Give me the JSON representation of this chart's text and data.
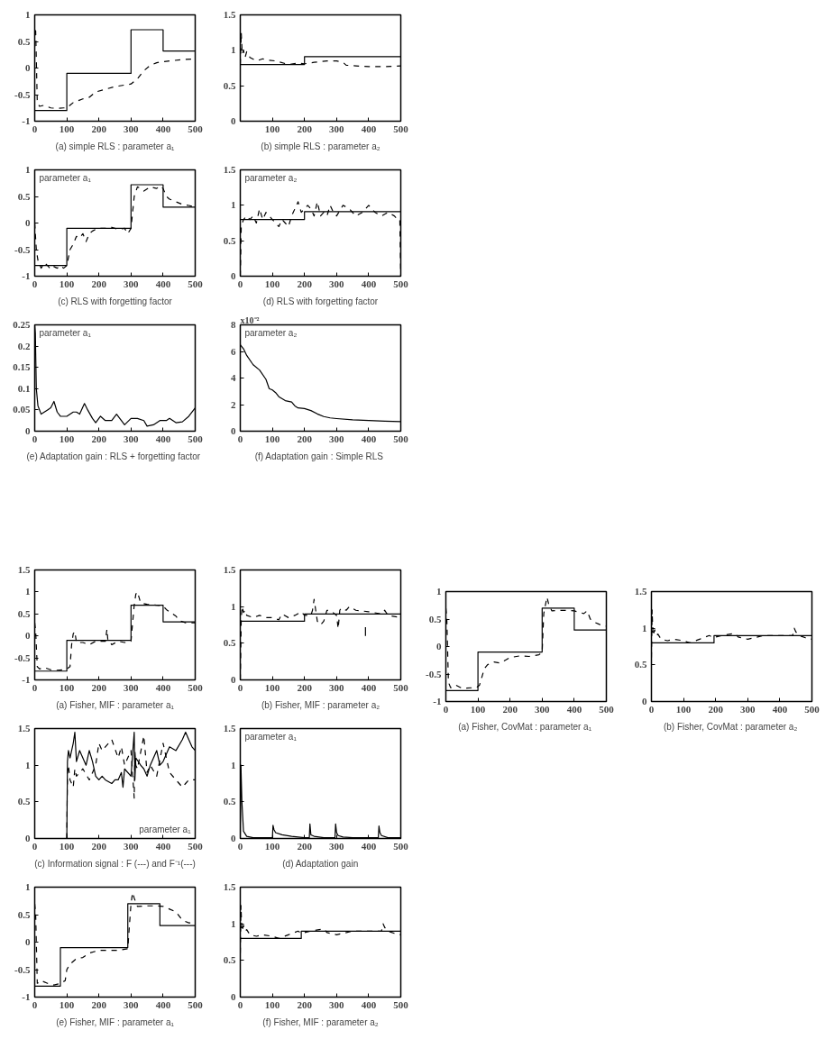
{
  "chart_data": [
    {
      "type": "line",
      "title": "(a) simple RLS : parameter a₁",
      "xlim": [
        0,
        500
      ],
      "ylim": [
        -1,
        1
      ],
      "xticks": [
        0,
        100,
        200,
        300,
        400,
        500
      ],
      "yticks": [
        -1,
        -0.5,
        0,
        0.5,
        1
      ],
      "grid": false,
      "series": [
        {
          "color": "#000000",
          "line_style": "solid",
          "x": [
            0,
            100,
            100,
            300,
            300,
            400,
            400,
            500
          ],
          "values": [
            -0.8,
            -0.8,
            -0.1,
            -0.1,
            0.72,
            0.72,
            0.32,
            0.32
          ]
        },
        {
          "color": "#000000",
          "line_style": "dashed",
          "x": [
            0,
            3,
            8,
            15,
            30,
            50,
            70,
            90,
            100,
            120,
            150,
            170,
            190,
            220,
            250,
            280,
            300,
            320,
            340,
            360,
            380,
            400,
            430,
            460,
            500
          ],
          "values": [
            0.7,
            0.7,
            -0.65,
            -0.72,
            -0.7,
            -0.75,
            -0.76,
            -0.75,
            -0.75,
            -0.65,
            -0.58,
            -0.55,
            -0.45,
            -0.4,
            -0.35,
            -0.32,
            -0.3,
            -0.2,
            -0.05,
            0.05,
            0.1,
            0.12,
            0.14,
            0.16,
            0.17
          ]
        }
      ]
    },
    {
      "type": "line",
      "title": "(b) simple RLS : parameter a₂",
      "xlim": [
        0,
        500
      ],
      "ylim": [
        0,
        1.5
      ],
      "xticks": [
        100,
        200,
        300,
        400,
        500
      ],
      "yticks": [
        0,
        0.5,
        1,
        1.5
      ],
      "grid": false,
      "series": [
        {
          "color": "#000000",
          "line_style": "solid",
          "x": [
            0,
            200,
            200,
            500
          ],
          "values": [
            0.8,
            0.8,
            0.91,
            0.91
          ]
        },
        {
          "color": "#000000",
          "line_style": "dashed",
          "x": [
            0,
            3,
            6,
            10,
            15,
            20,
            30,
            50,
            70,
            90,
            110,
            150,
            180,
            200,
            230,
            270,
            300,
            320,
            330,
            360,
            400,
            450,
            500
          ],
          "values": [
            0.8,
            1.25,
            0.95,
            1.0,
            0.9,
            0.98,
            0.9,
            0.85,
            0.88,
            0.86,
            0.85,
            0.8,
            0.82,
            0.81,
            0.83,
            0.85,
            0.85,
            0.83,
            0.79,
            0.78,
            0.77,
            0.77,
            0.78
          ]
        }
      ]
    },
    {
      "type": "line",
      "title": "(c) RLS with forgetting factor",
      "annotations": [
        "parameter a₁"
      ],
      "xlim": [
        0,
        500
      ],
      "ylim": [
        -1,
        1
      ],
      "xticks": [
        0,
        100,
        200,
        300,
        400,
        500
      ],
      "yticks": [
        -1,
        -0.5,
        0,
        0.5,
        1
      ],
      "grid": false,
      "series": [
        {
          "color": "#000000",
          "line_style": "solid",
          "x": [
            0,
            100,
            100,
            300,
            300,
            400,
            400,
            500
          ],
          "values": [
            -0.8,
            -0.8,
            -0.1,
            -0.1,
            0.72,
            0.72,
            0.3,
            0.3
          ]
        },
        {
          "color": "#000000",
          "line_style": "dashed",
          "x": [
            0,
            5,
            10,
            20,
            30,
            40,
            50,
            60,
            70,
            80,
            90,
            100,
            110,
            120,
            130,
            140,
            150,
            160,
            170,
            180,
            190,
            200,
            220,
            240,
            260,
            280,
            290,
            300,
            310,
            320,
            330,
            340,
            360,
            380,
            390,
            400,
            410,
            420,
            440,
            460,
            480,
            500
          ],
          "values": [
            0,
            -0.5,
            -0.7,
            -0.85,
            -0.75,
            -0.8,
            -0.87,
            -0.82,
            -0.85,
            -0.8,
            -0.85,
            -0.8,
            -0.5,
            -0.4,
            -0.25,
            -0.28,
            -0.2,
            -0.35,
            -0.2,
            -0.15,
            -0.12,
            -0.1,
            -0.1,
            -0.08,
            -0.12,
            -0.1,
            -0.2,
            -0.1,
            0.5,
            0.68,
            0.65,
            0.6,
            0.68,
            0.65,
            0.7,
            0.65,
            0.5,
            0.45,
            0.4,
            0.35,
            0.33,
            0.3
          ]
        }
      ]
    },
    {
      "type": "line",
      "title": "(d) RLS with forgetting factor",
      "annotations": [
        "parameter a₂"
      ],
      "xlim": [
        0,
        500
      ],
      "ylim": [
        0,
        1.5
      ],
      "xticks": [
        0,
        100,
        200,
        300,
        400,
        500
      ],
      "yticks": [
        0,
        0.5,
        1,
        1.5
      ],
      "grid": false,
      "series": [
        {
          "color": "#000000",
          "line_style": "solid",
          "x": [
            0,
            200,
            200,
            500
          ],
          "values": [
            0.8,
            0.8,
            0.91,
            0.91
          ]
        },
        {
          "color": "#000000",
          "line_style": "dashed",
          "x": [
            0,
            3,
            10,
            20,
            30,
            40,
            50,
            60,
            70,
            80,
            90,
            100,
            110,
            120,
            130,
            140,
            150,
            160,
            170,
            180,
            190,
            200,
            210,
            220,
            230,
            240,
            250,
            260,
            270,
            280,
            290,
            300,
            320,
            340,
            360,
            380,
            400,
            420,
            440,
            460,
            480,
            490,
            497,
            500
          ],
          "values": [
            0,
            0.7,
            0.8,
            0.85,
            0.8,
            0.85,
            0.75,
            0.95,
            0.8,
            0.9,
            0.85,
            0.8,
            0.75,
            0.7,
            0.8,
            0.75,
            0.7,
            0.85,
            0.95,
            1.05,
            0.9,
            0.95,
            1.0,
            0.95,
            0.85,
            1.05,
            0.85,
            0.9,
            0.85,
            1.0,
            0.9,
            0.85,
            1.0,
            0.95,
            0.85,
            0.9,
            1.0,
            0.9,
            0.85,
            0.9,
            0.85,
            0.8,
            0.8,
            0
          ]
        }
      ]
    },
    {
      "type": "line",
      "title": "(e)  Adaptation gain : RLS + forgetting factor",
      "annotations": [
        "parameter a₁"
      ],
      "xlim": [
        0,
        500
      ],
      "ylim": [
        0,
        0.25
      ],
      "xticks": [
        0,
        100,
        200,
        300,
        400,
        500
      ],
      "yticks": [
        0,
        0.05,
        0.1,
        0.15,
        0.2,
        0.25
      ],
      "grid": false,
      "series": [
        {
          "color": "#000000",
          "line_style": "solid",
          "x": [
            0,
            2,
            5,
            10,
            20,
            40,
            50,
            60,
            70,
            80,
            100,
            120,
            130,
            140,
            155,
            165,
            180,
            190,
            205,
            220,
            240,
            255,
            265,
            280,
            300,
            320,
            340,
            350,
            370,
            390,
            410,
            420,
            440,
            460,
            480,
            500
          ],
          "values": [
            0.25,
            0.23,
            0.1,
            0.06,
            0.04,
            0.05,
            0.055,
            0.07,
            0.045,
            0.035,
            0.035,
            0.045,
            0.045,
            0.04,
            0.065,
            0.05,
            0.03,
            0.02,
            0.035,
            0.025,
            0.025,
            0.04,
            0.03,
            0.015,
            0.03,
            0.03,
            0.025,
            0.012,
            0.015,
            0.025,
            0.025,
            0.03,
            0.02,
            0.022,
            0.035,
            0.055
          ]
        }
      ]
    },
    {
      "type": "line",
      "title": "(f)  Adaptation gain : Simple RLS",
      "annotations": [
        "x10⁻²",
        "parameter a₂"
      ],
      "xlim": [
        0,
        500
      ],
      "ylim": [
        0,
        8
      ],
      "xticks": [
        0,
        100,
        200,
        300,
        400,
        500
      ],
      "yticks": [
        0,
        2,
        4,
        6,
        8
      ],
      "grid": false,
      "series": [
        {
          "color": "#000000",
          "line_style": "solid",
          "x": [
            0,
            10,
            20,
            40,
            60,
            80,
            90,
            100,
            110,
            120,
            140,
            160,
            170,
            180,
            200,
            220,
            240,
            260,
            280,
            300,
            350,
            400,
            450,
            500
          ],
          "values": [
            6.5,
            6.2,
            5.7,
            5.0,
            4.6,
            3.9,
            3.2,
            3.1,
            2.9,
            2.6,
            2.3,
            2.2,
            1.9,
            1.75,
            1.7,
            1.55,
            1.3,
            1.1,
            1.0,
            0.95,
            0.85,
            0.8,
            0.75,
            0.72
          ]
        }
      ]
    },
    {
      "type": "line",
      "title": "(a) Fisher, MIF : parameter a₁",
      "xlim": [
        0,
        500
      ],
      "ylim": [
        -1,
        1.5
      ],
      "xticks": [
        0,
        100,
        200,
        300,
        400,
        500
      ],
      "yticks": [
        -1,
        -0.5,
        0,
        0.5,
        1,
        1.5
      ],
      "grid": false,
      "series": [
        {
          "color": "#000000",
          "line_style": "solid",
          "x": [
            0,
            100,
            100,
            300,
            300,
            400,
            400,
            500
          ],
          "values": [
            -0.8,
            -0.8,
            -0.1,
            -0.1,
            0.7,
            0.7,
            0.32,
            0.32
          ]
        },
        {
          "color": "#000000",
          "line_style": "dashed",
          "x": [
            0,
            3,
            8,
            15,
            30,
            50,
            70,
            90,
            100,
            110,
            115,
            120,
            125,
            130,
            150,
            170,
            190,
            220,
            225,
            228,
            230,
            240,
            260,
            280,
            300,
            305,
            310,
            315,
            320,
            330,
            350,
            380,
            400,
            410,
            420,
            430,
            440,
            450,
            470,
            500
          ],
          "values": [
            0.3,
            0.1,
            -0.7,
            -0.75,
            -0.72,
            -0.77,
            -0.78,
            -0.77,
            -0.75,
            -0.7,
            -0.2,
            0.05,
            0.1,
            -0.15,
            -0.15,
            -0.2,
            -0.12,
            -0.12,
            0.15,
            -0.1,
            -0.1,
            -0.2,
            -0.12,
            -0.15,
            -0.12,
            0.3,
            0.7,
            0.95,
            1.0,
            0.75,
            0.72,
            0.7,
            0.68,
            0.6,
            0.55,
            0.5,
            0.45,
            0.35,
            0.3,
            0.3
          ]
        }
      ]
    },
    {
      "type": "line",
      "title": "(b) Fisher, MIF : parameter a₂",
      "xlim": [
        0,
        500
      ],
      "ylim": [
        0,
        1.5
      ],
      "xticks": [
        0,
        100,
        200,
        300,
        400,
        500
      ],
      "yticks": [
        0,
        0.5,
        1,
        1.5
      ],
      "grid": false,
      "series": [
        {
          "color": "#000000",
          "line_style": "solid",
          "x": [
            0,
            200,
            200,
            500
          ],
          "values": [
            0.8,
            0.8,
            0.9,
            0.9
          ]
        },
        {
          "color": "#000000",
          "line_style": "dashed",
          "x": [
            0,
            3,
            6,
            10,
            15,
            20,
            40,
            60,
            80,
            100,
            120,
            130,
            150,
            170,
            190,
            200,
            220,
            225,
            230,
            240,
            250,
            260,
            270,
            280,
            300,
            305,
            310,
            315,
            330,
            340,
            360,
            400,
            440,
            450,
            460,
            500
          ],
          "values": [
            0,
            0.85,
            1.0,
            0.92,
            0.95,
            0.88,
            0.85,
            0.88,
            0.85,
            0.85,
            0.82,
            0.9,
            0.85,
            0.88,
            0.93,
            0.88,
            0.88,
            0.95,
            1.1,
            0.8,
            0.75,
            0.8,
            0.95,
            0.95,
            0.88,
            0.7,
            0.95,
            0.98,
            0.95,
            1.0,
            0.95,
            0.93,
            0.9,
            0.95,
            0.88,
            0.85
          ]
        },
        {
          "color": "#000000",
          "line_style": "solid",
          "x": [
            390,
            390
          ],
          "values": [
            0.6,
            0.72
          ]
        }
      ]
    },
    {
      "type": "line",
      "title": "(c) Information signal : F (---) and F⁻¹(---)",
      "annotations": [
        "parameter a₁"
      ],
      "xlim": [
        0,
        500
      ],
      "ylim": [
        0,
        1.5
      ],
      "xticks": [
        0,
        100,
        200,
        300,
        400,
        500
      ],
      "yticks": [
        0,
        0.5,
        1,
        1.5
      ],
      "grid": false,
      "series": [
        {
          "color": "#000000",
          "line_style": "solid",
          "x": [
            100,
            102,
            105,
            110,
            120,
            125,
            130,
            140,
            160,
            170,
            180,
            190,
            200,
            210,
            220,
            240,
            250,
            260,
            270,
            275,
            280,
            300,
            310,
            312,
            315,
            330,
            340,
            350,
            360,
            380,
            390,
            400,
            420,
            440,
            460,
            470,
            480,
            490,
            500
          ],
          "values": [
            0,
            1.05,
            1.2,
            1.1,
            1.3,
            1.45,
            1.05,
            1.2,
            1.0,
            1.2,
            1.05,
            0.85,
            0.8,
            0.85,
            0.8,
            0.75,
            0.8,
            0.8,
            0.9,
            0.7,
            0.95,
            0.85,
            1.45,
            0.8,
            1.1,
            1.0,
            0.95,
            0.85,
            1.0,
            1.2,
            1.0,
            1.05,
            1.25,
            1.2,
            1.35,
            1.45,
            1.35,
            1.25,
            1.2
          ]
        },
        {
          "color": "#000000",
          "line_style": "dashed",
          "x": [
            100,
            102,
            105,
            110,
            120,
            125,
            130,
            150,
            170,
            190,
            200,
            210,
            220,
            240,
            260,
            270,
            280,
            300,
            310,
            312,
            315,
            320,
            340,
            350,
            360,
            380,
            400,
            420,
            440,
            460,
            470,
            480,
            500
          ],
          "values": [
            0,
            0.9,
            1.0,
            0.8,
            0.7,
            0.95,
            0.85,
            0.95,
            0.8,
            1.0,
            1.3,
            1.2,
            1.25,
            1.35,
            1.1,
            1.25,
            1.0,
            1.2,
            0.55,
            1.2,
            1.0,
            0.95,
            1.4,
            0.9,
            1.0,
            0.85,
            1.3,
            0.9,
            0.8,
            0.7,
            0.75,
            0.8,
            0.8
          ]
        }
      ]
    },
    {
      "type": "line",
      "title": "(d) Adaptation gain",
      "annotations": [
        "parameter a₁"
      ],
      "xlim": [
        0,
        500
      ],
      "ylim": [
        0,
        1.5
      ],
      "xticks": [
        0,
        100,
        200,
        300,
        400,
        500
      ],
      "yticks": [
        0,
        0.5,
        1,
        1.5
      ],
      "grid": false,
      "series": [
        {
          "color": "#000000",
          "line_style": "solid",
          "x": [
            0,
            2,
            5,
            10,
            20,
            40,
            100,
            102,
            105,
            110,
            130,
            160,
            200,
            215,
            217,
            220,
            230,
            260,
            295,
            297,
            300,
            305,
            320,
            350,
            430,
            432,
            435,
            440,
            460,
            500
          ],
          "values": [
            0,
            1.0,
            0.5,
            0.1,
            0.03,
            0.01,
            0.01,
            0.18,
            0.12,
            0.08,
            0.05,
            0.03,
            0.01,
            0.01,
            0.2,
            0.05,
            0.03,
            0.01,
            0.01,
            0.2,
            0.08,
            0.04,
            0.02,
            0.01,
            0.01,
            0.17,
            0.08,
            0.04,
            0.01,
            0.01
          ]
        }
      ]
    },
    {
      "type": "line",
      "title": "(e) Fisher, MIF : parameter a₁",
      "xlim": [
        0,
        500
      ],
      "ylim": [
        -1,
        1
      ],
      "xticks": [
        0,
        100,
        200,
        300,
        400,
        500
      ],
      "yticks": [
        -1,
        -0.5,
        0,
        0.5,
        1
      ],
      "grid": false,
      "series": [
        {
          "color": "#000000",
          "line_style": "solid",
          "x": [
            0,
            80,
            80,
            290,
            290,
            390,
            390,
            500
          ],
          "values": [
            -0.8,
            -0.8,
            -0.1,
            -0.1,
            0.7,
            0.7,
            0.3,
            0.3
          ]
        },
        {
          "color": "#000000",
          "line_style": "dashed",
          "x": [
            0,
            3,
            8,
            20,
            40,
            60,
            80,
            95,
            100,
            110,
            130,
            150,
            170,
            200,
            230,
            260,
            290,
            295,
            300,
            305,
            310,
            320,
            350,
            380,
            400,
            420,
            440,
            460,
            480,
            500
          ],
          "values": [
            0.7,
            0.5,
            -0.75,
            -0.7,
            -0.75,
            -0.78,
            -0.75,
            -0.7,
            -0.5,
            -0.4,
            -0.3,
            -0.28,
            -0.2,
            -0.15,
            -0.15,
            -0.15,
            -0.12,
            0.3,
            0.7,
            0.9,
            0.8,
            0.65,
            0.66,
            0.66,
            0.65,
            0.6,
            0.55,
            0.4,
            0.35,
            0.35
          ]
        }
      ]
    },
    {
      "type": "line",
      "title": "(f) Fisher, MIF : parameter a₂",
      "xlim": [
        0,
        500
      ],
      "ylim": [
        0,
        1.5
      ],
      "xticks": [
        0,
        100,
        200,
        300,
        400,
        500
      ],
      "yticks": [
        0,
        0.5,
        1,
        1.5
      ],
      "grid": false,
      "series": [
        {
          "color": "#000000",
          "line_style": "solid",
          "x": [
            0,
            190,
            190,
            500
          ],
          "values": [
            0.8,
            0.8,
            0.9,
            0.9
          ]
        },
        {
          "color": "#000000",
          "line_style": "dashed",
          "x": [
            0,
            2,
            5,
            10,
            15,
            20,
            30,
            50,
            70,
            100,
            120,
            150,
            180,
            190,
            200,
            220,
            260,
            270,
            300,
            350,
            400,
            440,
            445,
            450,
            460,
            480,
            500
          ],
          "values": [
            0.6,
            1.25,
            0.9,
            0.98,
            0.9,
            0.92,
            0.85,
            0.83,
            0.85,
            0.83,
            0.8,
            0.85,
            0.9,
            0.87,
            0.88,
            0.9,
            0.93,
            0.88,
            0.85,
            0.9,
            0.9,
            0.9,
            1.0,
            0.95,
            0.9,
            0.87,
            0.85
          ]
        }
      ]
    },
    {
      "type": "line",
      "title": "(a)  Fisher, CovMat : parameter a₁",
      "xlim": [
        0,
        500
      ],
      "ylim": [
        -1,
        1
      ],
      "xticks": [
        0,
        100,
        200,
        300,
        400,
        500
      ],
      "yticks": [
        -1,
        -0.5,
        0,
        0.5,
        1
      ],
      "grid": false,
      "series": [
        {
          "color": "#000000",
          "line_style": "solid",
          "x": [
            0,
            100,
            100,
            300,
            300,
            400,
            400,
            500
          ],
          "values": [
            -0.8,
            -0.8,
            -0.1,
            -0.1,
            0.7,
            0.7,
            0.3,
            0.3
          ]
        },
        {
          "color": "#000000",
          "line_style": "dashed",
          "x": [
            0,
            3,
            8,
            15,
            30,
            50,
            80,
            95,
            105,
            120,
            130,
            150,
            170,
            200,
            230,
            260,
            290,
            300,
            305,
            315,
            320,
            330,
            360,
            400,
            430,
            440,
            450,
            460,
            480,
            500
          ],
          "values": [
            0.7,
            0.5,
            -0.65,
            -0.75,
            -0.7,
            -0.76,
            -0.75,
            -0.75,
            -0.7,
            -0.4,
            -0.33,
            -0.28,
            -0.3,
            -0.2,
            -0.17,
            -0.18,
            -0.15,
            -0.1,
            0.6,
            0.9,
            0.78,
            0.65,
            0.66,
            0.65,
            0.6,
            0.65,
            0.5,
            0.45,
            0.4,
            0.37
          ]
        }
      ]
    },
    {
      "type": "line",
      "title": "(b)  Fisher, CovMat : parameter a₂",
      "xlim": [
        0,
        500
      ],
      "ylim": [
        0,
        1.5
      ],
      "xticks": [
        0,
        100,
        200,
        300,
        400,
        500
      ],
      "yticks": [
        0,
        0.5,
        1,
        1.5
      ],
      "grid": false,
      "series": [
        {
          "color": "#000000",
          "line_style": "solid",
          "x": [
            0,
            195,
            195,
            500
          ],
          "values": [
            0.8,
            0.8,
            0.9,
            0.9
          ]
        },
        {
          "color": "#000000",
          "line_style": "dashed",
          "x": [
            0,
            2,
            5,
            10,
            15,
            20,
            30,
            50,
            70,
            100,
            120,
            150,
            180,
            195,
            200,
            220,
            260,
            270,
            300,
            350,
            400,
            440,
            445,
            450,
            460,
            480,
            500
          ],
          "values": [
            0.6,
            1.25,
            0.9,
            0.98,
            0.9,
            0.92,
            0.85,
            0.83,
            0.85,
            0.83,
            0.8,
            0.85,
            0.9,
            0.87,
            0.88,
            0.9,
            0.93,
            0.88,
            0.85,
            0.9,
            0.9,
            0.9,
            1.0,
            0.95,
            0.9,
            0.87,
            0.85
          ]
        }
      ]
    }
  ]
}
